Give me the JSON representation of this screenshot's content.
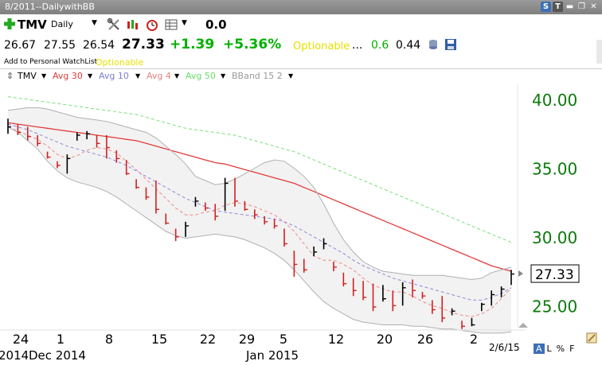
{
  "window": {
    "title": "8/2011--DailywithBB"
  },
  "toolbar": {
    "symbol": "TMV",
    "period": "Daily",
    "value": "0.0"
  },
  "quote": {
    "open": "26.67",
    "high": "27.55",
    "low": "26.54",
    "last": "27.33",
    "change": "+1.39",
    "change_pct": "+5.36%",
    "optionable": "Optionable",
    "dots": "...",
    "v1": "0.6",
    "v2": "0.44"
  },
  "subline": {
    "watchlist": "Add to Personal WatchList",
    "optionable": "Optionable"
  },
  "legend": {
    "items": [
      {
        "label": "TMV",
        "color": "#000000"
      },
      {
        "label": "Avg 30",
        "color": "#e23b3b"
      },
      {
        "label": "Avg 10",
        "color": "#7a7ad6"
      },
      {
        "label": "Avg 4",
        "color": "#e88080"
      },
      {
        "label": "Avg 50",
        "color": "#66dd66"
      },
      {
        "label": "BBand 15 2",
        "color": "#999999"
      }
    ]
  },
  "chart_data": {
    "type": "line",
    "y_ticks": [
      "40.00",
      "35.00",
      "30.00",
      "25.00"
    ],
    "ylim": [
      23.4,
      41.1
    ],
    "last_price_label": "27.33",
    "x_ticks": [
      "24",
      "1",
      "8",
      "15",
      "22",
      "29",
      "5",
      "12",
      "20",
      "26",
      "2"
    ],
    "month_labels": [
      "2014",
      "Dec 2014",
      "Jan 2015"
    ],
    "date_label": "2/6/15",
    "bars": [
      {
        "h": 38.6,
        "l": 37.5,
        "c": 38.0
      },
      {
        "h": 38.2,
        "l": 37.4,
        "c": 37.6
      },
      {
        "h": 38.0,
        "l": 37.0,
        "c": 37.3
      },
      {
        "h": 37.4,
        "l": 36.6,
        "c": 36.8
      },
      {
        "h": 36.2,
        "l": 35.7,
        "c": 35.8
      },
      {
        "h": 35.5,
        "l": 35.0,
        "c": 35.2
      },
      {
        "h": 36.0,
        "l": 34.6,
        "c": 35.7
      },
      {
        "h": 37.6,
        "l": 37.0,
        "c": 37.4
      },
      {
        "h": 37.7,
        "l": 37.1,
        "c": 37.5
      },
      {
        "h": 37.4,
        "l": 36.5,
        "c": 36.8
      },
      {
        "h": 37.4,
        "l": 35.7,
        "c": 36.5
      },
      {
        "h": 36.3,
        "l": 35.4,
        "c": 35.7
      },
      {
        "h": 35.6,
        "l": 34.5,
        "c": 34.6
      },
      {
        "h": 34.2,
        "l": 33.5,
        "c": 33.6
      },
      {
        "h": 33.6,
        "l": 32.7,
        "c": 32.9
      },
      {
        "h": 34.1,
        "l": 31.7,
        "c": 32.0
      },
      {
        "h": 31.7,
        "l": 30.9,
        "c": 31.0
      },
      {
        "h": 30.6,
        "l": 29.7,
        "c": 30.0
      },
      {
        "h": 31.1,
        "l": 30.0,
        "c": 30.8
      },
      {
        "h": 32.9,
        "l": 32.2,
        "c": 32.6
      },
      {
        "h": 32.5,
        "l": 31.9,
        "c": 32.1
      },
      {
        "h": 32.4,
        "l": 31.2,
        "c": 31.5
      },
      {
        "h": 34.3,
        "l": 31.9,
        "c": 33.9
      },
      {
        "h": 34.3,
        "l": 32.2,
        "c": 32.6
      },
      {
        "h": 32.6,
        "l": 31.9,
        "c": 32.0
      },
      {
        "h": 32.0,
        "l": 31.3,
        "c": 31.6
      },
      {
        "h": 31.5,
        "l": 30.9,
        "c": 31.1
      },
      {
        "h": 31.3,
        "l": 30.6,
        "c": 30.8
      },
      {
        "h": 30.6,
        "l": 29.3,
        "c": 29.5
      },
      {
        "h": 29.0,
        "l": 27.1,
        "c": 28.0
      },
      {
        "h": 28.4,
        "l": 27.4,
        "c": 27.6
      },
      {
        "h": 29.3,
        "l": 28.6,
        "c": 28.9
      },
      {
        "h": 29.9,
        "l": 29.1,
        "c": 29.5
      },
      {
        "h": 28.2,
        "l": 27.5,
        "c": 27.8
      },
      {
        "h": 27.4,
        "l": 26.4,
        "c": 26.6
      },
      {
        "h": 27.0,
        "l": 25.7,
        "c": 26.1
      },
      {
        "h": 26.8,
        "l": 25.4,
        "c": 25.6
      },
      {
        "h": 26.6,
        "l": 24.6,
        "c": 24.9
      },
      {
        "h": 26.5,
        "l": 25.3,
        "c": 25.5
      },
      {
        "h": 26.1,
        "l": 24.6,
        "c": 25.0
      },
      {
        "h": 26.7,
        "l": 25.0,
        "c": 26.3
      },
      {
        "h": 26.9,
        "l": 25.6,
        "c": 26.1
      },
      {
        "h": 26.0,
        "l": 25.5,
        "c": 25.7
      },
      {
        "h": 25.4,
        "l": 24.4,
        "c": 24.7
      },
      {
        "h": 25.7,
        "l": 23.8,
        "c": 24.1
      },
      {
        "h": 24.8,
        "l": 24.3,
        "c": 24.6
      },
      {
        "h": 23.9,
        "l": 23.3,
        "c": 23.5
      },
      {
        "h": 24.1,
        "l": 23.5,
        "c": 23.6
      },
      {
        "h": 25.2,
        "l": 24.6,
        "c": 25.1
      },
      {
        "h": 26.1,
        "l": 25.0,
        "c": 25.8
      },
      {
        "h": 26.4,
        "l": 25.6,
        "c": 26.2
      },
      {
        "h": 27.6,
        "l": 26.5,
        "c": 27.3
      }
    ],
    "series": [
      {
        "name": "Avg 30",
        "values": [
          38.3,
          38.2,
          38.1,
          38.0,
          37.9,
          37.8,
          37.7,
          37.6,
          37.5,
          37.4,
          37.3,
          37.2,
          37.1,
          37.0,
          36.8,
          36.6,
          36.4,
          36.2,
          36.0,
          35.8,
          35.6,
          35.4,
          35.3,
          35.1,
          34.9,
          34.7,
          34.5,
          34.3,
          34.1,
          33.9,
          33.6,
          33.3,
          33.0,
          32.7,
          32.4,
          32.1,
          31.8,
          31.5,
          31.2,
          30.9,
          30.6,
          30.3,
          30.0,
          29.7,
          29.4,
          29.1,
          28.8,
          28.5,
          28.2,
          27.9,
          27.7,
          27.5
        ]
      },
      {
        "name": "Avg 10",
        "values": [
          38.2,
          38.0,
          37.8,
          37.5,
          37.2,
          36.9,
          36.6,
          36.4,
          36.2,
          36.0,
          35.8,
          35.5,
          35.2,
          34.8,
          34.4,
          34.0,
          33.6,
          33.2,
          32.8,
          32.5,
          32.2,
          31.9,
          31.8,
          31.7,
          31.6,
          31.5,
          31.4,
          31.3,
          31.1,
          30.8,
          30.4,
          30.0,
          29.6,
          29.2,
          28.8,
          28.3,
          27.9,
          27.6,
          27.3,
          27.0,
          26.8,
          26.6,
          26.4,
          26.2,
          26.0,
          25.8,
          25.6,
          25.4,
          25.4,
          25.6,
          25.9,
          26.3
        ]
      },
      {
        "name": "Avg 4",
        "values": [
          38.0,
          37.7,
          37.4,
          37.1,
          36.6,
          36.0,
          35.7,
          35.9,
          36.3,
          36.5,
          36.4,
          36.1,
          35.5,
          34.9,
          34.2,
          33.5,
          32.8,
          32.1,
          31.6,
          31.6,
          31.8,
          31.9,
          32.3,
          32.5,
          32.4,
          32.2,
          31.9,
          31.6,
          31.1,
          30.4,
          29.5,
          28.6,
          28.3,
          28.3,
          28.0,
          27.6,
          27.0,
          26.5,
          26.2,
          26.0,
          26.0,
          25.7,
          25.3,
          25.0,
          24.8,
          24.5,
          24.3,
          24.2,
          24.4,
          24.8,
          25.5,
          26.3
        ]
      },
      {
        "name": "Avg 50",
        "values": [
          40.2,
          40.1,
          40.0,
          39.9,
          39.8,
          39.7,
          39.6,
          39.5,
          39.4,
          39.3,
          39.2,
          39.1,
          39.0,
          38.9,
          38.7,
          38.5,
          38.3,
          38.1,
          37.9,
          37.8,
          37.7,
          37.6,
          37.5,
          37.4,
          37.2,
          37.0,
          36.8,
          36.6,
          36.4,
          36.2,
          35.9,
          35.6,
          35.3,
          35.0,
          34.7,
          34.4,
          34.1,
          33.8,
          33.5,
          33.2,
          32.9,
          32.6,
          32.3,
          32.0,
          31.7,
          31.4,
          31.1,
          30.8,
          30.5,
          30.2,
          29.9,
          29.6
        ]
      },
      {
        "name": "BBand upper",
        "values": [
          39.2,
          39.3,
          39.4,
          39.4,
          39.3,
          39.1,
          38.9,
          38.7,
          38.6,
          38.5,
          38.4,
          38.2,
          38.0,
          37.8,
          37.6,
          37.2,
          36.6,
          36.0,
          35.3,
          34.4,
          34.1,
          33.8,
          33.9,
          34.2,
          34.6,
          35.0,
          35.4,
          35.6,
          35.5,
          35.0,
          34.4,
          33.6,
          32.4,
          31.0,
          29.8,
          28.9,
          28.2,
          27.8,
          27.5,
          27.4,
          27.3,
          27.2,
          27.2,
          27.2,
          27.2,
          27.1,
          27.0,
          26.9,
          27.0,
          27.4,
          27.6,
          27.8
        ]
      },
      {
        "name": "BBand lower",
        "values": [
          38.0,
          37.6,
          37.0,
          36.4,
          35.5,
          34.8,
          34.3,
          34.0,
          33.8,
          33.6,
          33.3,
          32.9,
          32.4,
          31.9,
          31.4,
          30.9,
          30.4,
          30.1,
          29.9,
          30.0,
          30.1,
          30.2,
          30.1,
          30.0,
          29.8,
          29.5,
          29.2,
          28.8,
          28.3,
          27.6,
          26.8,
          26.0,
          25.3,
          24.8,
          24.4,
          24.0,
          23.8,
          23.7,
          23.6,
          23.6,
          23.6,
          23.5,
          23.5,
          23.4,
          23.3,
          23.3,
          23.2,
          23.1,
          23.0,
          23.0,
          23.0,
          23.1
        ]
      }
    ]
  },
  "footer": {
    "a": "A",
    "l": "L",
    "pct": "%",
    "f": "F"
  }
}
